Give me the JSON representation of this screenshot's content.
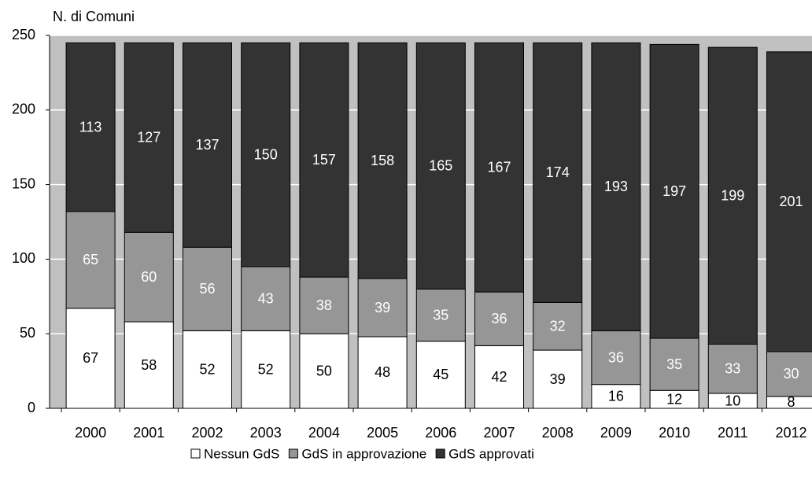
{
  "chart_data": {
    "type": "stacked-bar",
    "y_label": "N. di Comuni",
    "categories": [
      "2000",
      "2001",
      "2002",
      "2003",
      "2004",
      "2005",
      "2006",
      "2007",
      "2008",
      "2009",
      "2010",
      "2011",
      "2012"
    ],
    "series": [
      {
        "name": "Nessun GdS",
        "color": "#ffffff",
        "values": [
          67,
          58,
          52,
          52,
          50,
          48,
          45,
          42,
          39,
          16,
          12,
          10,
          8
        ]
      },
      {
        "name": "GdS in approvazione",
        "color": "#969696",
        "values": [
          65,
          60,
          56,
          43,
          38,
          39,
          35,
          36,
          32,
          36,
          35,
          33,
          30
        ]
      },
      {
        "name": "GdS approvati",
        "color": "#333333",
        "values": [
          113,
          127,
          137,
          150,
          157,
          158,
          165,
          167,
          174,
          193,
          197,
          199,
          201
        ]
      }
    ],
    "ylim": [
      0,
      250
    ],
    "yticks": [
      0,
      50,
      100,
      150,
      200,
      250
    ],
    "grid": true,
    "legend": "bottom"
  }
}
